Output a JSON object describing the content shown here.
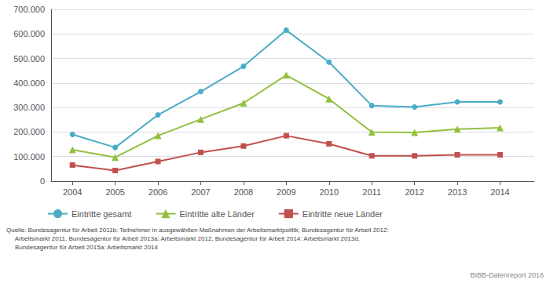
{
  "chart_data": {
    "type": "line",
    "x": [
      2004,
      2005,
      2006,
      2007,
      2008,
      2009,
      2010,
      2011,
      2012,
      2013,
      2014
    ],
    "xlim": [
      2003.5,
      2014.8
    ],
    "xticks": [
      2004,
      2005,
      2006,
      2007,
      2008,
      2009,
      2010,
      2011,
      2012,
      2013,
      2014
    ],
    "ylim": [
      0,
      700000
    ],
    "yticks": [
      0,
      {
        "value": 100000,
        "label": "100.000"
      },
      {
        "value": 200000,
        "label": "200.000"
      },
      {
        "value": 300000,
        "label": "300.000"
      },
      {
        "value": 400000,
        "label": "400.000"
      },
      {
        "value": 500000,
        "label": "500.000"
      },
      {
        "value": 600000,
        "label": "600.000"
      },
      {
        "value": 700000,
        "label": "700.000"
      }
    ],
    "grid": true,
    "legend": "bottom",
    "series": [
      {
        "name": "Eintritte gesamt",
        "color": "#4bacc6",
        "marker": "circle",
        "values": [
          190000,
          137000,
          270000,
          365000,
          468000,
          615000,
          485000,
          308000,
          302000,
          323000,
          323000
        ]
      },
      {
        "name": "Eintritte alte Länder",
        "color": "#92c040",
        "marker": "triangle",
        "values": [
          128000,
          97000,
          185000,
          252000,
          318000,
          432000,
          335000,
          200000,
          198000,
          212000,
          217000
        ]
      },
      {
        "name": "Eintritte neue Länder",
        "color": "#c0504d",
        "marker": "square",
        "values": [
          65000,
          43000,
          80000,
          117000,
          143000,
          185000,
          152000,
          103000,
          103000,
          107000,
          107000
        ]
      }
    ],
    "annotations": [
      "Quelle: Bundesagentur für Arbeit 2011b: Teilnehmer in ausgewählten Maßnahmen der Arbeitsmarktpolitik; Bundesagentur für Arbeit 2012:\n     Arbeitsmarkt 2011, Bundesagentur für Arbeit 2013a: Arbeitsmarkt 2012, Bundesagentur für Arbeit 2014: Arbeitsmarkt 2013d,\n     Bundesagentur für Arbeit 2015a: Arbeitsmarkt 2014",
      "BIBB-Datenreport 2016"
    ]
  }
}
